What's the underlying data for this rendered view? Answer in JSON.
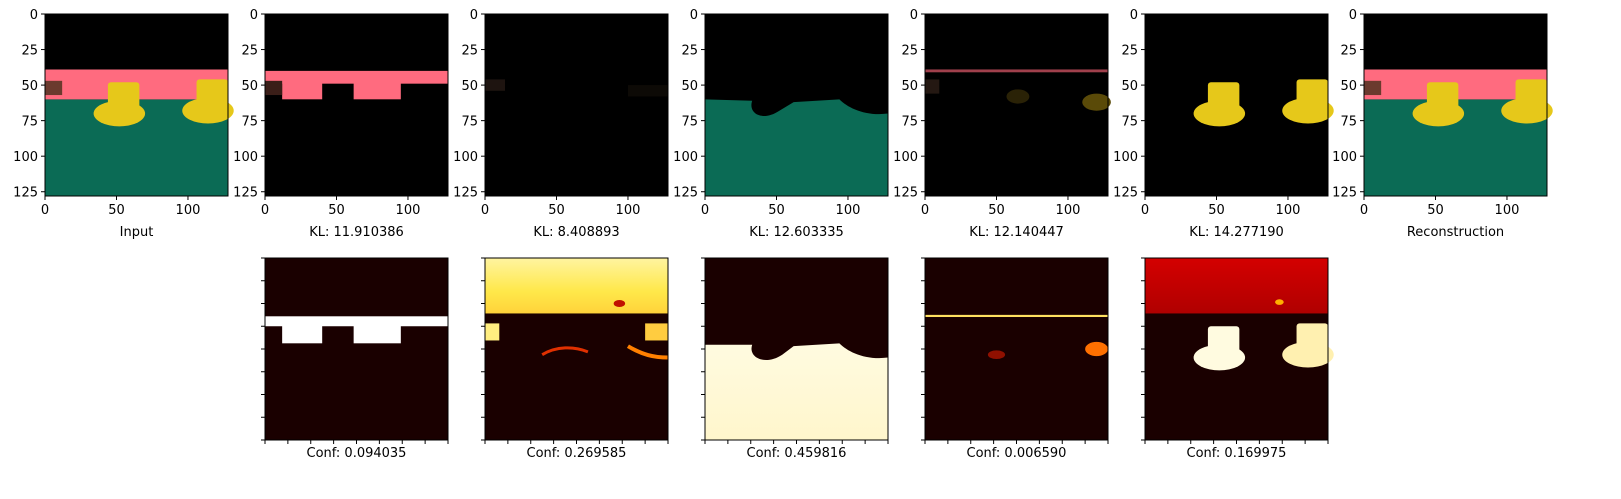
{
  "chart_data": {
    "type": "image-grid",
    "image_axis": {
      "xticks": [
        "0",
        "50",
        "100"
      ],
      "yticks": [
        "0",
        "25",
        "50",
        "75",
        "100",
        "125"
      ],
      "xlim": [
        0,
        128
      ],
      "ylim": [
        128,
        0
      ]
    },
    "top_row": [
      {
        "label": "Input",
        "content": "input"
      },
      {
        "label": "KL: 11.910386",
        "content": "pink"
      },
      {
        "label": "KL: 8.408893",
        "content": "dark"
      },
      {
        "label": "KL: 12.603335",
        "content": "teal"
      },
      {
        "label": "KL: 12.140447",
        "content": "ducks-faint"
      },
      {
        "label": "KL: 14.277190",
        "content": "ducks"
      },
      {
        "label": "Reconstruction",
        "content": "input"
      }
    ],
    "bottom_row": [
      {
        "label": "Conf: 0.094035",
        "value": 0.094035,
        "content": "mask-pink"
      },
      {
        "label": "Conf: 0.269585",
        "value": 0.269585,
        "content": "mask-upper"
      },
      {
        "label": "Conf: 0.459816",
        "value": 0.459816,
        "content": "mask-floor"
      },
      {
        "label": "Conf: 0.006590",
        "value": 0.00659,
        "content": "mask-line"
      },
      {
        "label": "Conf: 0.169975",
        "value": 0.169975,
        "content": "mask-ducks"
      }
    ],
    "colors": {
      "pink": "#ff6b7f",
      "teal": "#0b6b55",
      "yellow": "#e6c81a",
      "brown": "#6b3a2e",
      "hot_low": "#1a0000",
      "hot_high": "#ffffe6"
    }
  }
}
